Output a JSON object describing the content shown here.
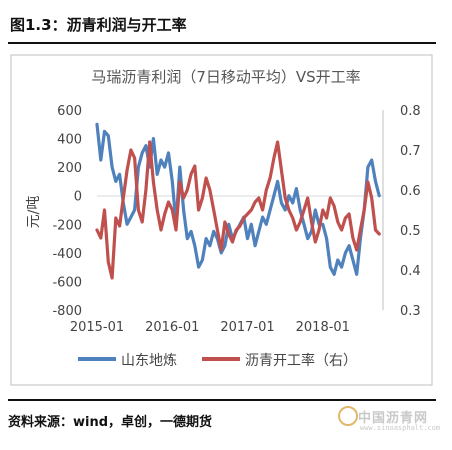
{
  "figure_caption": "图1.3：沥青利润与开工率",
  "source": "资料来源：wind，卓创，一德期货",
  "watermark": {
    "text": "中国沥青网",
    "url": "www.sinoasphalt.com"
  },
  "chart_data": {
    "type": "line",
    "title": "马瑞沥青利润（7日移动平均）VS开工率",
    "ylabel": "元/吨",
    "ylim": [
      -800,
      600
    ],
    "y2lim": [
      0.3,
      0.8
    ],
    "yticks": [
      "600",
      "400",
      "200",
      "0",
      "-200",
      "-400",
      "-600",
      "-800"
    ],
    "y2ticks": [
      "0.8",
      "0.7",
      "0.6",
      "0.5",
      "0.4",
      "0.3"
    ],
    "xticks": [
      "2015-01",
      "2016-01",
      "2017-01",
      "2018-01"
    ],
    "colors": {
      "profit": "#4f81bd",
      "rate": "#c0504d"
    },
    "series": [
      {
        "name": "山东地炼",
        "axis": "left",
        "x": [
          2015.0,
          2015.05,
          2015.1,
          2015.15,
          2015.2,
          2015.25,
          2015.3,
          2015.35,
          2015.4,
          2015.45,
          2015.5,
          2015.55,
          2015.6,
          2015.65,
          2015.7,
          2015.75,
          2015.8,
          2015.85,
          2015.9,
          2015.95,
          2016.0,
          2016.05,
          2016.1,
          2016.15,
          2016.2,
          2016.25,
          2016.3,
          2016.35,
          2016.4,
          2016.45,
          2016.5,
          2016.55,
          2016.6,
          2016.65,
          2016.7,
          2016.75,
          2016.8,
          2016.85,
          2016.9,
          2016.95,
          2017.0,
          2017.05,
          2017.1,
          2017.15,
          2017.2,
          2017.25,
          2017.3,
          2017.35,
          2017.4,
          2017.45,
          2017.5,
          2017.55,
          2017.6,
          2017.65,
          2017.7,
          2017.75,
          2017.8,
          2017.85,
          2017.9,
          2017.95,
          2018.0,
          2018.05,
          2018.1,
          2018.15,
          2018.2,
          2018.25,
          2018.3,
          2018.35,
          2018.4,
          2018.45,
          2018.5,
          2018.55,
          2018.6,
          2018.65,
          2018.7,
          2018.75
        ],
        "values": [
          500,
          250,
          450,
          420,
          200,
          100,
          150,
          -50,
          -200,
          -150,
          -100,
          200,
          300,
          350,
          200,
          400,
          150,
          250,
          200,
          300,
          100,
          -200,
          200,
          -100,
          -300,
          -250,
          -350,
          -500,
          -450,
          -300,
          -350,
          -250,
          -300,
          -400,
          -350,
          -200,
          -300,
          -250,
          -200,
          -150,
          -300,
          -200,
          -350,
          -250,
          -150,
          -200,
          -100,
          0,
          100,
          -50,
          -100,
          0,
          -50,
          50,
          -100,
          -200,
          -300,
          -250,
          -100,
          -200,
          -200,
          -300,
          -500,
          -550,
          -450,
          -500,
          -400,
          -350,
          -450,
          -550,
          -300,
          -100,
          200,
          250,
          100,
          0
        ]
      },
      {
        "name": "沥青开工率（右）",
        "axis": "right",
        "x": [
          2015.0,
          2015.05,
          2015.1,
          2015.15,
          2015.2,
          2015.25,
          2015.3,
          2015.35,
          2015.4,
          2015.45,
          2015.5,
          2015.55,
          2015.6,
          2015.65,
          2015.7,
          2015.75,
          2015.8,
          2015.85,
          2015.9,
          2015.95,
          2016.0,
          2016.05,
          2016.1,
          2016.15,
          2016.2,
          2016.25,
          2016.3,
          2016.35,
          2016.4,
          2016.45,
          2016.5,
          2016.55,
          2016.6,
          2016.65,
          2016.7,
          2016.75,
          2016.8,
          2016.85,
          2016.9,
          2016.95,
          2017.0,
          2017.05,
          2017.1,
          2017.15,
          2017.2,
          2017.25,
          2017.3,
          2017.35,
          2017.4,
          2017.45,
          2017.5,
          2017.55,
          2017.6,
          2017.65,
          2017.7,
          2017.75,
          2017.8,
          2017.85,
          2017.9,
          2017.95,
          2018.0,
          2018.05,
          2018.1,
          2018.15,
          2018.2,
          2018.25,
          2018.3,
          2018.35,
          2018.4,
          2018.45,
          2018.5,
          2018.55,
          2018.6,
          2018.65,
          2018.7,
          2018.75
        ],
        "values": [
          0.5,
          0.48,
          0.55,
          0.42,
          0.38,
          0.53,
          0.51,
          0.58,
          0.65,
          0.7,
          0.68,
          0.55,
          0.52,
          0.6,
          0.72,
          0.62,
          0.55,
          0.5,
          0.54,
          0.57,
          0.55,
          0.5,
          0.62,
          0.58,
          0.6,
          0.64,
          0.66,
          0.55,
          0.58,
          0.63,
          0.6,
          0.55,
          0.5,
          0.45,
          0.52,
          0.49,
          0.47,
          0.5,
          0.51,
          0.53,
          0.54,
          0.55,
          0.57,
          0.58,
          0.55,
          0.6,
          0.63,
          0.68,
          0.72,
          0.65,
          0.58,
          0.55,
          0.53,
          0.5,
          0.52,
          0.55,
          0.58,
          0.52,
          0.47,
          0.5,
          0.55,
          0.53,
          0.58,
          0.56,
          0.52,
          0.5,
          0.53,
          0.54,
          0.48,
          0.45,
          0.5,
          0.55,
          0.62,
          0.58,
          0.5,
          0.49
        ]
      }
    ]
  }
}
